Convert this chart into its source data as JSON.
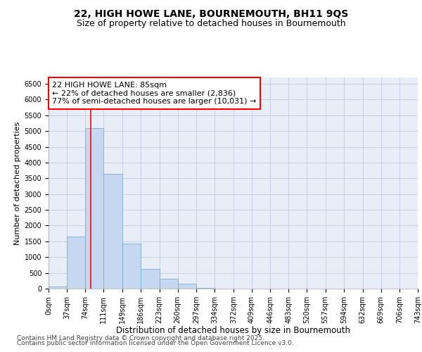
{
  "title1": "22, HIGH HOWE LANE, BOURNEMOUTH, BH11 9QS",
  "title2": "Size of property relative to detached houses in Bournemouth",
  "xlabel": "Distribution of detached houses by size in Bournemouth",
  "ylabel": "Number of detached properties",
  "bar_color": "#c5d8f0",
  "bar_edge_color": "#7aadd4",
  "background_color": "#ffffff",
  "ax_background": "#e8eef8",
  "grid_color": "#c0cce0",
  "bin_labels": [
    "0sqm",
    "37sqm",
    "74sqm",
    "111sqm",
    "149sqm",
    "186sqm",
    "223sqm",
    "260sqm",
    "297sqm",
    "334sqm",
    "372sqm",
    "409sqm",
    "446sqm",
    "483sqm",
    "520sqm",
    "557sqm",
    "594sqm",
    "632sqm",
    "669sqm",
    "706sqm",
    "743sqm"
  ],
  "bar_heights": [
    60,
    1650,
    5100,
    3650,
    1430,
    620,
    310,
    150,
    30,
    10,
    5,
    2,
    1,
    0,
    0,
    0,
    0,
    0,
    0,
    0
  ],
  "bin_edges": [
    0,
    37,
    74,
    111,
    149,
    186,
    223,
    260,
    297,
    334,
    372,
    409,
    446,
    483,
    520,
    557,
    594,
    632,
    669,
    706,
    743
  ],
  "red_line_x": 85,
  "annotation_text": "22 HIGH HOWE LANE: 85sqm\n← 22% of detached houses are smaller (2,836)\n77% of semi-detached houses are larger (10,031) →",
  "ylim": [
    0,
    6700
  ],
  "yticks": [
    0,
    500,
    1000,
    1500,
    2000,
    2500,
    3000,
    3500,
    4000,
    4500,
    5000,
    5500,
    6000,
    6500
  ],
  "footnote1": "Contains HM Land Registry data © Crown copyright and database right 2025.",
  "footnote2": "Contains public sector information licensed under the Open Government Licence v3.0.",
  "title1_fontsize": 10,
  "title2_fontsize": 9,
  "xlabel_fontsize": 8.5,
  "ylabel_fontsize": 8,
  "tick_fontsize": 7,
  "annotation_fontsize": 8,
  "footnote_fontsize": 6.5
}
